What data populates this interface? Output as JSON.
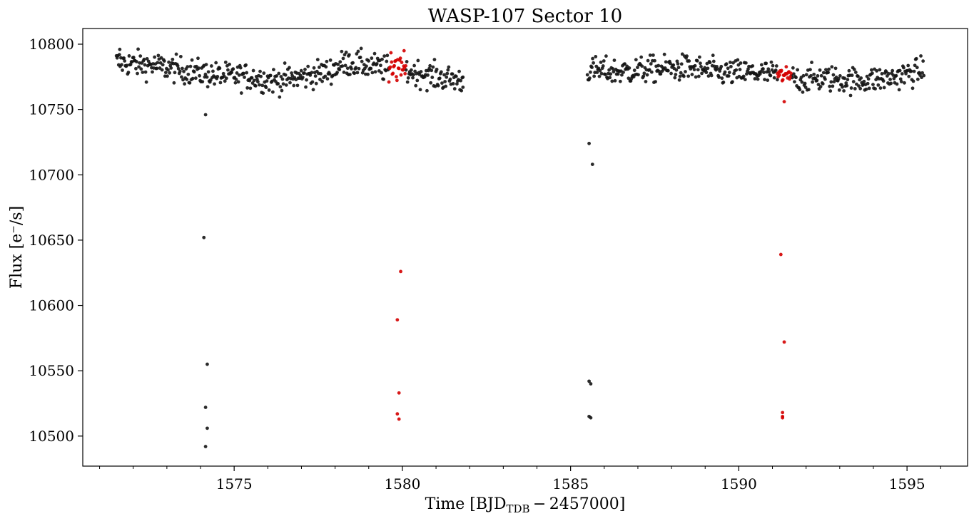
{
  "chart_data": {
    "type": "scatter",
    "title": "WASP-107 Sector 10",
    "xlabel_parts": {
      "main": "Time [BJD",
      "sub": "TDB",
      "tail": " − 2457000]"
    },
    "ylabel": "Flux [e⁻/s]",
    "xlim": [
      1570.5,
      1596.8
    ],
    "ylim": [
      10477,
      10812
    ],
    "x_ticks": [
      1575,
      1580,
      1585,
      1590,
      1595
    ],
    "x_minor_step": 1,
    "y_ticks": [
      10500,
      10550,
      10600,
      10650,
      10700,
      10750,
      10800
    ],
    "grid": false,
    "colors": {
      "normal": "#141414",
      "in_transit": "#d40000"
    },
    "series": [
      {
        "name": "",
        "color": "#141414",
        "baseline_segments": [
          {
            "x": [
              1571.5,
              1572.5,
              1573.5,
              1574.5,
              1575.5,
              1576.2,
              1577.0,
              1577.8,
              1578.3,
              1578.9,
              1579.5,
              1580.5,
              1581.0,
              1581.8
            ],
            "y": [
              10786,
              10784,
              10780,
              10776,
              10775,
              10772,
              10775,
              10779,
              10786,
              10784,
              10781,
              10778,
              10775,
              10772
            ],
            "scatter": 5
          },
          {
            "x": [
              1585.5,
              1586.5,
              1587.5,
              1588.5,
              1589.5,
              1590.5,
              1591.0,
              1591.8,
              1592.6,
              1593.5,
              1594.5,
              1595.5
            ],
            "y": [
              10780,
              10779,
              10781,
              10782,
              10778,
              10778,
              10777,
              10773,
              10774,
              10772,
              10774,
              10780
            ],
            "scatter": 5
          }
        ],
        "points": [
          [
            1571.6,
            10796
          ],
          [
            1574.15,
            10746
          ],
          [
            1574.1,
            10652
          ],
          [
            1574.2,
            10555
          ],
          [
            1574.15,
            10522
          ],
          [
            1574.2,
            10506
          ],
          [
            1574.15,
            10492
          ],
          [
            1585.55,
            10724
          ],
          [
            1585.65,
            10708
          ],
          [
            1585.55,
            10542
          ],
          [
            1585.6,
            10540
          ],
          [
            1585.55,
            10515
          ],
          [
            1585.6,
            10514
          ],
          [
            1578.4,
            10791
          ],
          [
            1581.8,
            10767
          ]
        ]
      },
      {
        "name": "",
        "color": "#d40000",
        "transit_windows": [
          {
            "x_start": 1579.6,
            "x_end": 1580.1,
            "y_center": 10782,
            "scatter": 6
          },
          {
            "x_start": 1591.15,
            "x_end": 1591.55,
            "y_center": 10776,
            "scatter": 3
          }
        ],
        "points": [
          [
            1580.05,
            10795
          ],
          [
            1579.95,
            10626
          ],
          [
            1579.85,
            10589
          ],
          [
            1579.9,
            10533
          ],
          [
            1579.85,
            10517
          ],
          [
            1579.9,
            10513
          ],
          [
            1591.35,
            10756
          ],
          [
            1591.25,
            10639
          ],
          [
            1591.35,
            10572
          ],
          [
            1591.3,
            10518
          ],
          [
            1591.3,
            10515
          ],
          [
            1591.3,
            10514
          ]
        ]
      }
    ]
  }
}
